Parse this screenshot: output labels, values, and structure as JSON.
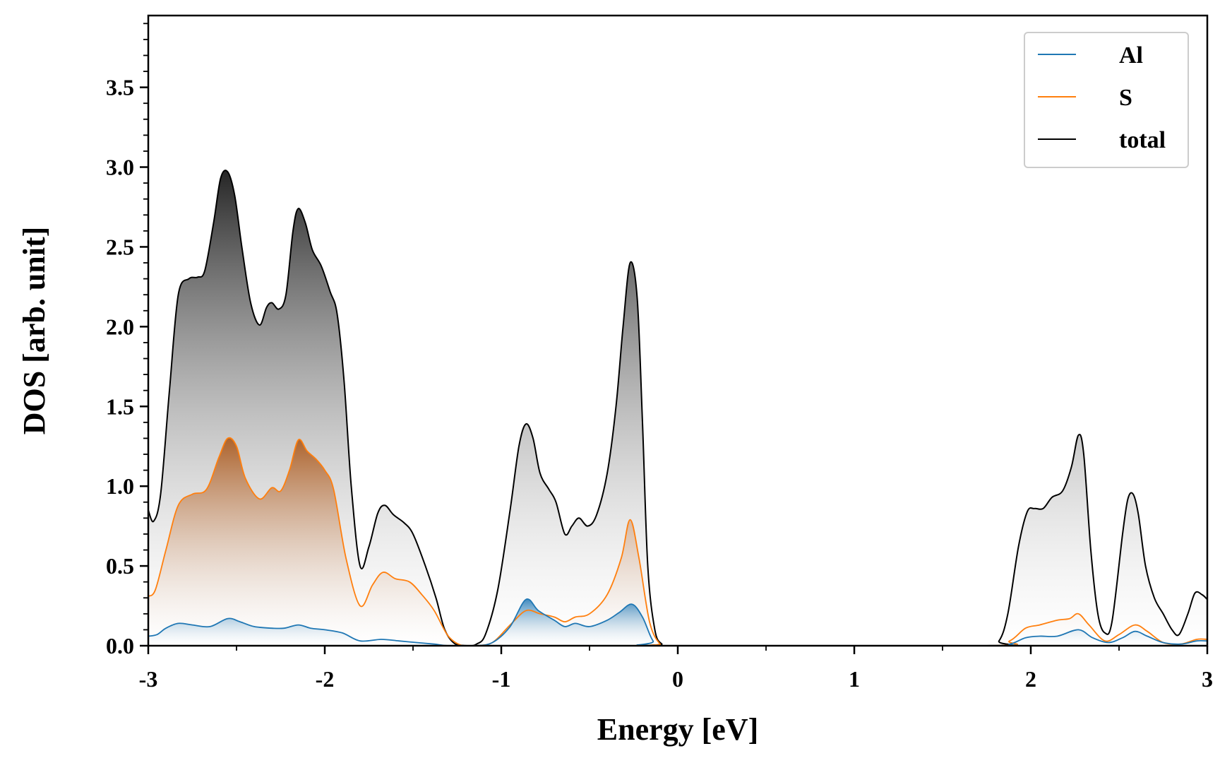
{
  "chart_data": {
    "type": "area",
    "xlabel": "Energy [eV]",
    "ylabel": "DOS [arb. unit]",
    "xlim": [
      -3,
      3
    ],
    "ylim": [
      0,
      3.95
    ],
    "x_ticks": [
      -3,
      -2,
      -1,
      0,
      1,
      2,
      3
    ],
    "x_tick_labels": [
      "-3",
      "-2",
      "-1",
      "0",
      "1",
      "2",
      "3"
    ],
    "y_ticks": [
      0,
      0.5,
      1,
      1.5,
      2,
      2.5,
      3,
      3.5
    ],
    "y_tick_labels": [
      "0.0",
      "0.5",
      "1.0",
      "1.5",
      "2.0",
      "2.5",
      "3.0",
      "3.5"
    ],
    "legend_position": "top-right",
    "series": [
      {
        "name": "Al",
        "color": "#1f77b4",
        "points": [
          [
            -3.0,
            0.06
          ],
          [
            -2.95,
            0.07
          ],
          [
            -2.9,
            0.11
          ],
          [
            -2.83,
            0.14
          ],
          [
            -2.75,
            0.13
          ],
          [
            -2.65,
            0.12
          ],
          [
            -2.55,
            0.17
          ],
          [
            -2.48,
            0.15
          ],
          [
            -2.4,
            0.12
          ],
          [
            -2.3,
            0.11
          ],
          [
            -2.23,
            0.11
          ],
          [
            -2.15,
            0.13
          ],
          [
            -2.08,
            0.11
          ],
          [
            -2.0,
            0.1
          ],
          [
            -1.9,
            0.08
          ],
          [
            -1.8,
            0.03
          ],
          [
            -1.68,
            0.04
          ],
          [
            -1.58,
            0.03
          ],
          [
            -1.48,
            0.02
          ],
          [
            -1.38,
            0.01
          ],
          [
            -1.3,
            0.0
          ],
          [
            -1.15,
            0.0
          ],
          [
            -1.05,
            0.02
          ],
          [
            -0.95,
            0.12
          ],
          [
            -0.86,
            0.29
          ],
          [
            -0.79,
            0.22
          ],
          [
            -0.7,
            0.16
          ],
          [
            -0.64,
            0.12
          ],
          [
            -0.58,
            0.14
          ],
          [
            -0.5,
            0.12
          ],
          [
            -0.4,
            0.16
          ],
          [
            -0.33,
            0.21
          ],
          [
            -0.26,
            0.26
          ],
          [
            -0.2,
            0.18
          ],
          [
            -0.14,
            0.03
          ],
          [
            -0.08,
            0.0
          ],
          [
            1.75,
            0.0
          ],
          [
            1.88,
            0.01
          ],
          [
            1.97,
            0.05
          ],
          [
            2.05,
            0.06
          ],
          [
            2.15,
            0.06
          ],
          [
            2.27,
            0.1
          ],
          [
            2.35,
            0.05
          ],
          [
            2.44,
            0.02
          ],
          [
            2.52,
            0.05
          ],
          [
            2.59,
            0.09
          ],
          [
            2.66,
            0.06
          ],
          [
            2.75,
            0.02
          ],
          [
            2.85,
            0.01
          ],
          [
            2.94,
            0.03
          ],
          [
            3.0,
            0.03
          ]
        ]
      },
      {
        "name": "S",
        "color": "#ff7f0e",
        "points": [
          [
            -3.0,
            0.31
          ],
          [
            -2.96,
            0.35
          ],
          [
            -2.9,
            0.6
          ],
          [
            -2.83,
            0.88
          ],
          [
            -2.75,
            0.95
          ],
          [
            -2.67,
            0.98
          ],
          [
            -2.6,
            1.18
          ],
          [
            -2.55,
            1.3
          ],
          [
            -2.5,
            1.25
          ],
          [
            -2.45,
            1.05
          ],
          [
            -2.37,
            0.92
          ],
          [
            -2.3,
            0.99
          ],
          [
            -2.25,
            0.97
          ],
          [
            -2.2,
            1.1
          ],
          [
            -2.15,
            1.29
          ],
          [
            -2.1,
            1.22
          ],
          [
            -2.05,
            1.17
          ],
          [
            -2.0,
            1.1
          ],
          [
            -1.95,
            0.98
          ],
          [
            -1.88,
            0.55
          ],
          [
            -1.8,
            0.25
          ],
          [
            -1.73,
            0.38
          ],
          [
            -1.67,
            0.46
          ],
          [
            -1.6,
            0.42
          ],
          [
            -1.52,
            0.4
          ],
          [
            -1.45,
            0.32
          ],
          [
            -1.38,
            0.22
          ],
          [
            -1.3,
            0.06
          ],
          [
            -1.22,
            0.0
          ],
          [
            -1.15,
            0.0
          ],
          [
            -1.05,
            0.02
          ],
          [
            -0.95,
            0.13
          ],
          [
            -0.86,
            0.22
          ],
          [
            -0.78,
            0.2
          ],
          [
            -0.7,
            0.18
          ],
          [
            -0.64,
            0.15
          ],
          [
            -0.58,
            0.18
          ],
          [
            -0.5,
            0.2
          ],
          [
            -0.4,
            0.32
          ],
          [
            -0.32,
            0.55
          ],
          [
            -0.27,
            0.79
          ],
          [
            -0.22,
            0.55
          ],
          [
            -0.16,
            0.15
          ],
          [
            -0.1,
            0.01
          ],
          [
            -0.05,
            0.0
          ],
          [
            1.75,
            0.0
          ],
          [
            1.88,
            0.03
          ],
          [
            1.97,
            0.11
          ],
          [
            2.05,
            0.13
          ],
          [
            2.15,
            0.16
          ],
          [
            2.22,
            0.17
          ],
          [
            2.27,
            0.2
          ],
          [
            2.33,
            0.13
          ],
          [
            2.42,
            0.03
          ],
          [
            2.5,
            0.07
          ],
          [
            2.59,
            0.13
          ],
          [
            2.66,
            0.09
          ],
          [
            2.75,
            0.02
          ],
          [
            2.85,
            0.01
          ],
          [
            2.94,
            0.04
          ],
          [
            3.0,
            0.04
          ]
        ]
      },
      {
        "name": "total",
        "color": "#000000",
        "points": [
          [
            -3.0,
            0.85
          ],
          [
            -2.97,
            0.78
          ],
          [
            -2.93,
            0.95
          ],
          [
            -2.88,
            1.6
          ],
          [
            -2.83,
            2.2
          ],
          [
            -2.77,
            2.3
          ],
          [
            -2.72,
            2.31
          ],
          [
            -2.68,
            2.35
          ],
          [
            -2.63,
            2.65
          ],
          [
            -2.59,
            2.93
          ],
          [
            -2.55,
            2.97
          ],
          [
            -2.51,
            2.82
          ],
          [
            -2.47,
            2.5
          ],
          [
            -2.42,
            2.15
          ],
          [
            -2.37,
            2.01
          ],
          [
            -2.33,
            2.12
          ],
          [
            -2.3,
            2.15
          ],
          [
            -2.26,
            2.11
          ],
          [
            -2.22,
            2.2
          ],
          [
            -2.18,
            2.6
          ],
          [
            -2.15,
            2.74
          ],
          [
            -2.11,
            2.65
          ],
          [
            -2.07,
            2.48
          ],
          [
            -2.02,
            2.38
          ],
          [
            -1.97,
            2.22
          ],
          [
            -1.93,
            2.08
          ],
          [
            -1.89,
            1.65
          ],
          [
            -1.85,
            1.0
          ],
          [
            -1.8,
            0.5
          ],
          [
            -1.75,
            0.62
          ],
          [
            -1.7,
            0.83
          ],
          [
            -1.66,
            0.88
          ],
          [
            -1.61,
            0.82
          ],
          [
            -1.55,
            0.77
          ],
          [
            -1.5,
            0.7
          ],
          [
            -1.43,
            0.5
          ],
          [
            -1.37,
            0.3
          ],
          [
            -1.32,
            0.1
          ],
          [
            -1.26,
            0.01
          ],
          [
            -1.18,
            0.0
          ],
          [
            -1.14,
            0.01
          ],
          [
            -1.09,
            0.07
          ],
          [
            -1.02,
            0.35
          ],
          [
            -0.95,
            0.85
          ],
          [
            -0.9,
            1.25
          ],
          [
            -0.86,
            1.39
          ],
          [
            -0.82,
            1.3
          ],
          [
            -0.78,
            1.08
          ],
          [
            -0.73,
            0.98
          ],
          [
            -0.69,
            0.9
          ],
          [
            -0.64,
            0.7
          ],
          [
            -0.6,
            0.75
          ],
          [
            -0.56,
            0.8
          ],
          [
            -0.51,
            0.75
          ],
          [
            -0.46,
            0.82
          ],
          [
            -0.4,
            1.08
          ],
          [
            -0.35,
            1.5
          ],
          [
            -0.31,
            2.0
          ],
          [
            -0.27,
            2.4
          ],
          [
            -0.23,
            2.18
          ],
          [
            -0.2,
            1.4
          ],
          [
            -0.17,
            0.5
          ],
          [
            -0.13,
            0.1
          ],
          [
            -0.09,
            0.01
          ],
          [
            -0.05,
            0.0
          ],
          [
            1.75,
            0.0
          ],
          [
            1.82,
            0.03
          ],
          [
            1.87,
            0.2
          ],
          [
            1.93,
            0.62
          ],
          [
            1.98,
            0.84
          ],
          [
            2.02,
            0.86
          ],
          [
            2.07,
            0.86
          ],
          [
            2.12,
            0.93
          ],
          [
            2.18,
            0.97
          ],
          [
            2.23,
            1.12
          ],
          [
            2.27,
            1.32
          ],
          [
            2.3,
            1.2
          ],
          [
            2.34,
            0.6
          ],
          [
            2.38,
            0.2
          ],
          [
            2.42,
            0.08
          ],
          [
            2.46,
            0.15
          ],
          [
            2.52,
            0.7
          ],
          [
            2.55,
            0.92
          ],
          [
            2.58,
            0.95
          ],
          [
            2.61,
            0.82
          ],
          [
            2.65,
            0.5
          ],
          [
            2.7,
            0.3
          ],
          [
            2.75,
            0.2
          ],
          [
            2.8,
            0.1
          ],
          [
            2.84,
            0.07
          ],
          [
            2.89,
            0.2
          ],
          [
            2.93,
            0.33
          ],
          [
            2.97,
            0.32
          ],
          [
            3.0,
            0.29
          ]
        ]
      }
    ]
  }
}
